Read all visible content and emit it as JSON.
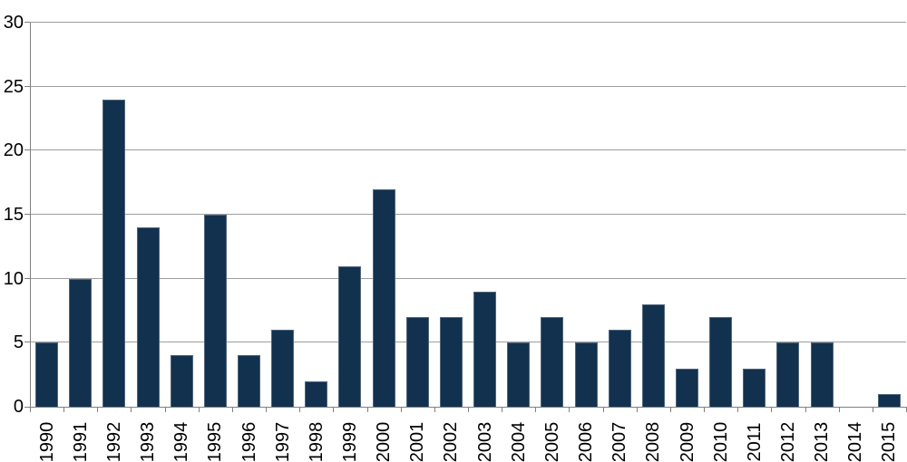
{
  "chart_data": {
    "type": "bar",
    "title": "",
    "xlabel": "",
    "ylabel": "",
    "categories": [
      "1990",
      "1991",
      "1992",
      "1993",
      "1994",
      "1995",
      "1996",
      "1997",
      "1998",
      "1999",
      "2000",
      "2001",
      "2002",
      "2003",
      "2004",
      "2005",
      "2006",
      "2007",
      "2008",
      "2009",
      "2010",
      "2011",
      "2012",
      "2013",
      "2014",
      "2015"
    ],
    "values": [
      5,
      10,
      24,
      14,
      4,
      15,
      4,
      6,
      2,
      11,
      17,
      7,
      7,
      9,
      5,
      7,
      5,
      6,
      8,
      3,
      7,
      3,
      5,
      5,
      0,
      1
    ],
    "ylim": [
      0,
      30
    ],
    "yticks": [
      0,
      5,
      10,
      15,
      20,
      25,
      30
    ],
    "grid": true,
    "legend": "none",
    "colors": {
      "bar_fill": "#12314E",
      "bar_border": "#50677E",
      "gridline": "#9D9D9D",
      "axis": "#808080",
      "text": "#000000",
      "background": "#FFFFFF"
    }
  }
}
